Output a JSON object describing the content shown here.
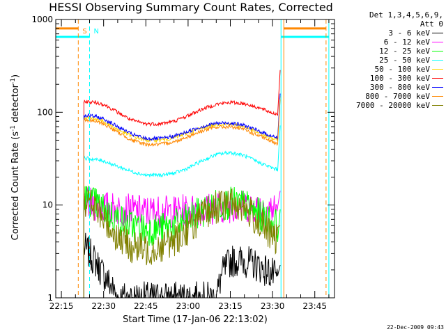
{
  "title": "HESSI Observing Summary Count Rates, Corrected",
  "legend_header_1": "Det 1,3,4,5,6,9,",
  "legend_header_2": "Att 0",
  "footer_text": "22-Dec-2009 09:43",
  "markers": {
    "s_label": "S",
    "n_label": "N"
  },
  "chart_data": {
    "type": "line",
    "title": "HESSI Observing Summary Count Rates, Corrected",
    "xlabel": "Start Time (17-Jan-06 22:13:02)",
    "ylabel": "Corrected Count Rate (s⁻¹ detector⁻¹)",
    "ylabel_parts": {
      "pre": "Corrected Count Rate (s",
      "sup1": "-1",
      "mid": " detector",
      "sup2": "-1",
      "post": ")"
    },
    "xscale": "time-of-day",
    "yscale": "log",
    "xlim": [
      "22:13",
      "23:52"
    ],
    "ylim": [
      1,
      1000
    ],
    "x_ticks": [
      "22:15",
      "22:30",
      "22:45",
      "23:00",
      "23:15",
      "23:30",
      "23:45"
    ],
    "y_ticks": [
      "1",
      "10",
      "100",
      "1000"
    ],
    "legend_position": "right",
    "series": [
      {
        "name": "3 - 6 keV",
        "color": "#000000",
        "points": [
          [
            "22:23",
            3.5
          ],
          [
            "22:25",
            3.0
          ],
          [
            "22:27",
            2.5
          ],
          [
            "22:29",
            2.0
          ],
          [
            "22:31",
            1.6
          ],
          [
            "22:33",
            1.3
          ],
          [
            "22:35",
            1.0
          ],
          [
            "22:50",
            1.0
          ],
          [
            "23:10",
            1.0
          ],
          [
            "23:12",
            1.8
          ],
          [
            "23:15",
            2.5
          ],
          [
            "23:20",
            2.5
          ],
          [
            "23:25",
            2.2
          ],
          [
            "23:30",
            1.8
          ],
          [
            "23:32",
            1.5
          ]
        ]
      },
      {
        "name": "6 - 12 keV",
        "color": "#ff00ff",
        "points": [
          [
            "22:23",
            10.5
          ],
          [
            "22:27",
            10.0
          ],
          [
            "22:30",
            9.5
          ],
          [
            "22:35",
            9.0
          ],
          [
            "22:45",
            8.5
          ],
          [
            "22:55",
            8.5
          ],
          [
            "23:05",
            9.0
          ],
          [
            "23:12",
            9.5
          ],
          [
            "23:18",
            9.8
          ],
          [
            "23:25",
            9.5
          ],
          [
            "23:31",
            9.0
          ],
          [
            "23:32",
            9.5
          ]
        ]
      },
      {
        "name": "12 - 25 keV",
        "color": "#00ff00",
        "points": [
          [
            "22:23",
            12.0
          ],
          [
            "22:26",
            11.0
          ],
          [
            "22:30",
            9.0
          ],
          [
            "22:35",
            7.0
          ],
          [
            "22:40",
            6.0
          ],
          [
            "22:45",
            5.5
          ],
          [
            "22:50",
            5.5
          ],
          [
            "22:55",
            6.0
          ],
          [
            "23:00",
            7.0
          ],
          [
            "23:05",
            8.5
          ],
          [
            "23:10",
            10.0
          ],
          [
            "23:15",
            10.5
          ],
          [
            "23:20",
            10.0
          ],
          [
            "23:25",
            8.0
          ],
          [
            "23:30",
            6.5
          ],
          [
            "23:32",
            6.0
          ]
        ]
      },
      {
        "name": "25 - 50 keV",
        "color": "#00ffff",
        "points": [
          [
            "22:23",
            32
          ],
          [
            "22:27",
            31
          ],
          [
            "22:30",
            30
          ],
          [
            "22:35",
            26
          ],
          [
            "22:40",
            23
          ],
          [
            "22:45",
            21
          ],
          [
            "22:50",
            21
          ],
          [
            "22:55",
            22
          ],
          [
            "23:00",
            25
          ],
          [
            "23:05",
            30
          ],
          [
            "23:10",
            35
          ],
          [
            "23:15",
            37
          ],
          [
            "23:20",
            34
          ],
          [
            "23:25",
            29
          ],
          [
            "23:30",
            25
          ],
          [
            "23:32",
            24
          ]
        ]
      },
      {
        "name": "50 - 100 keV",
        "color": "#ffd700",
        "points": [
          [
            "22:23",
            88
          ],
          [
            "22:27",
            85
          ],
          [
            "22:30",
            80
          ],
          [
            "22:35",
            65
          ],
          [
            "22:40",
            55
          ],
          [
            "22:45",
            50
          ],
          [
            "22:50",
            50
          ],
          [
            "22:55",
            53
          ],
          [
            "23:00",
            60
          ],
          [
            "23:05",
            68
          ],
          [
            "23:10",
            74
          ],
          [
            "23:15",
            75
          ],
          [
            "23:20",
            70
          ],
          [
            "23:25",
            60
          ],
          [
            "23:30",
            52
          ],
          [
            "23:32",
            50
          ]
        ]
      },
      {
        "name": "100 - 300 keV",
        "color": "#ff0000",
        "points": [
          [
            "22:23",
            130
          ],
          [
            "22:27",
            128
          ],
          [
            "22:30",
            122
          ],
          [
            "22:35",
            100
          ],
          [
            "22:40",
            82
          ],
          [
            "22:45",
            75
          ],
          [
            "22:50",
            75
          ],
          [
            "22:55",
            80
          ],
          [
            "23:00",
            92
          ],
          [
            "23:05",
            108
          ],
          [
            "23:10",
            122
          ],
          [
            "23:15",
            128
          ],
          [
            "23:20",
            124
          ],
          [
            "23:25",
            112
          ],
          [
            "23:30",
            98
          ],
          [
            "23:32",
            95
          ]
        ]
      },
      {
        "name": "300 - 800 keV",
        "color": "#0000ff",
        "points": [
          [
            "22:23",
            93
          ],
          [
            "22:27",
            90
          ],
          [
            "22:30",
            85
          ],
          [
            "22:35",
            70
          ],
          [
            "22:40",
            58
          ],
          [
            "22:45",
            52
          ],
          [
            "22:50",
            52
          ],
          [
            "22:55",
            55
          ],
          [
            "23:00",
            62
          ],
          [
            "23:05",
            70
          ],
          [
            "23:10",
            76
          ],
          [
            "23:15",
            77
          ],
          [
            "23:20",
            72
          ],
          [
            "23:25",
            63
          ],
          [
            "23:30",
            55
          ],
          [
            "23:32",
            53
          ]
        ]
      },
      {
        "name": "800 - 7000 keV",
        "color": "#ff8800",
        "points": [
          [
            "22:23",
            83
          ],
          [
            "22:27",
            80
          ],
          [
            "22:30",
            75
          ],
          [
            "22:35",
            61
          ],
          [
            "22:40",
            50
          ],
          [
            "22:45",
            45
          ],
          [
            "22:50",
            45
          ],
          [
            "22:55",
            48
          ],
          [
            "23:00",
            55
          ],
          [
            "23:05",
            63
          ],
          [
            "23:10",
            69
          ],
          [
            "23:15",
            70
          ],
          [
            "23:20",
            65
          ],
          [
            "23:25",
            56
          ],
          [
            "23:30",
            48
          ],
          [
            "23:32",
            46
          ]
        ]
      },
      {
        "name": "7000 - 20000 keV",
        "color": "#808000",
        "points": [
          [
            "22:23",
            11.5
          ],
          [
            "22:26",
            10.0
          ],
          [
            "22:30",
            7.0
          ],
          [
            "22:35",
            4.5
          ],
          [
            "22:40",
            3.5
          ],
          [
            "22:45",
            3.3
          ],
          [
            "22:50",
            3.5
          ],
          [
            "22:55",
            4.2
          ],
          [
            "23:00",
            5.5
          ],
          [
            "23:05",
            7.5
          ],
          [
            "23:10",
            9.5
          ],
          [
            "23:15",
            10.5
          ],
          [
            "23:20",
            9.5
          ],
          [
            "23:25",
            6.5
          ],
          [
            "23:30",
            4.5
          ],
          [
            "23:32",
            4.0
          ]
        ]
      }
    ],
    "vertical_markers": [
      {
        "label": "S",
        "time": "22:21",
        "color": "#ff8800",
        "style": "dashed"
      },
      {
        "label": "N",
        "time": "22:25",
        "color": "#00ffff",
        "style": "dashed"
      },
      {
        "label": "",
        "time": "23:33",
        "color": "#00ffff",
        "style": "solid"
      },
      {
        "label": "",
        "time": "23:34",
        "color": "#ff8800",
        "style": "solid"
      },
      {
        "label": "",
        "time": "23:50",
        "color": "#00ffff",
        "style": "solid"
      },
      {
        "label": "",
        "time": "23:49",
        "color": "#ff8800",
        "style": "dashed"
      }
    ],
    "flag_bars": [
      {
        "name": "S",
        "color": "#ff8800",
        "value": 800,
        "segments": [
          [
            "22:13",
            "22:21"
          ],
          [
            "23:34",
            "23:49"
          ]
        ]
      },
      {
        "name": "N",
        "color": "#00ffff",
        "value": 650,
        "segments": [
          [
            "22:13",
            "22:25"
          ],
          [
            "23:33",
            "23:50"
          ]
        ]
      }
    ]
  }
}
